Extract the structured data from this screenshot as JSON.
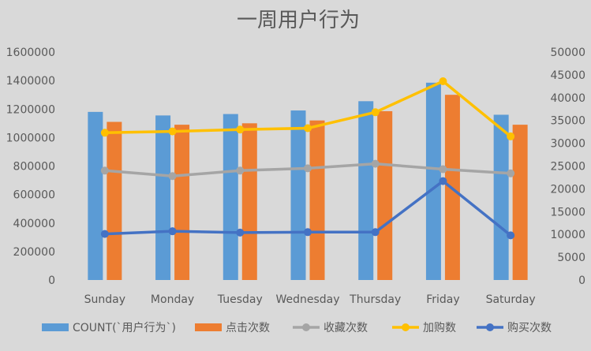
{
  "chart_data": {
    "type": "bar",
    "title": "一周用户行为",
    "categories": [
      "Sunday",
      "Monday",
      "Tuesday",
      "Wednesday",
      "Thursday",
      "Friday",
      "Saturday"
    ],
    "xlabel": "",
    "ylabel": "",
    "ylim": [
      0,
      1600000
    ],
    "y2lim": [
      0,
      50000
    ],
    "y_ticks": [
      "0",
      "200000",
      "400000",
      "600000",
      "800000",
      "1000000",
      "1200000",
      "1400000",
      "1600000"
    ],
    "y2_ticks": [
      "0",
      "5000",
      "10000",
      "15000",
      "20000",
      "25000",
      "30000",
      "35000",
      "40000",
      "45000",
      "50000"
    ],
    "grid": false,
    "legend_position": "bottom",
    "series": [
      {
        "name": "COUNT(`用户行为`)",
        "type": "bar",
        "axis": "left",
        "color": "#5b9bd5",
        "values": [
          1180000,
          1155000,
          1165000,
          1190000,
          1255000,
          1385000,
          1160000
        ]
      },
      {
        "name": "点击次数",
        "type": "bar",
        "axis": "left",
        "color": "#ed7d31",
        "values": [
          1110000,
          1090000,
          1100000,
          1120000,
          1185000,
          1300000,
          1090000
        ]
      },
      {
        "name": "收藏次数",
        "type": "line",
        "axis": "right",
        "color": "#a5a5a5",
        "values": [
          24000,
          22800,
          24000,
          24500,
          25500,
          24300,
          23400
        ]
      },
      {
        "name": "加购数",
        "type": "line",
        "axis": "right",
        "color": "#ffc000",
        "values": [
          32300,
          32600,
          33000,
          33300,
          36800,
          43600,
          31500
        ]
      },
      {
        "name": "购买次数",
        "type": "line",
        "axis": "right",
        "color": "#4472c4",
        "values": [
          10100,
          10700,
          10400,
          10500,
          10500,
          21700,
          9800
        ]
      }
    ]
  }
}
